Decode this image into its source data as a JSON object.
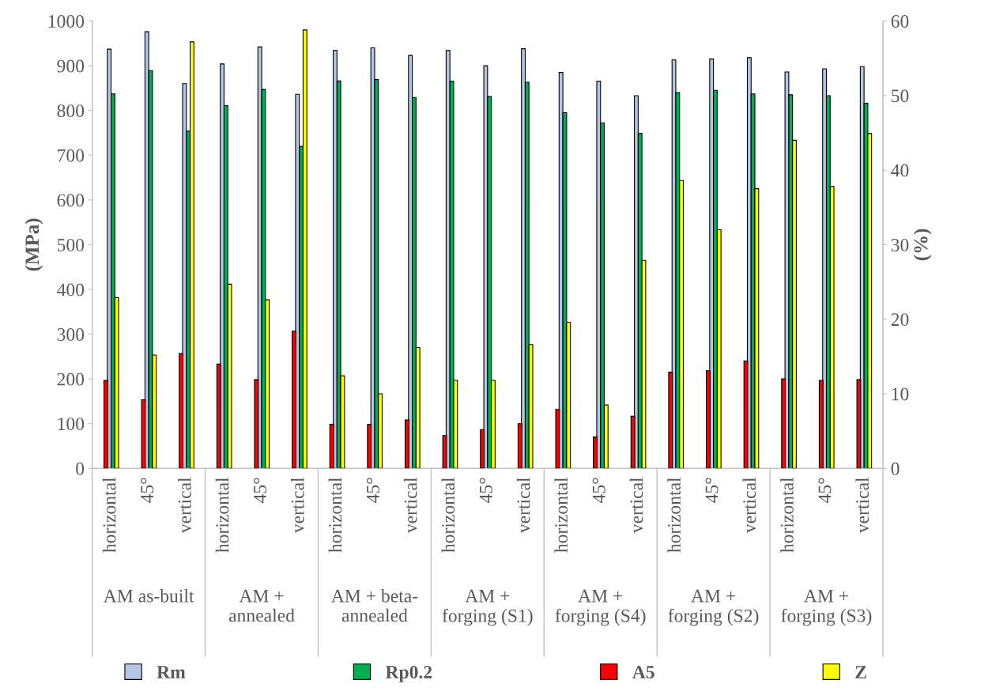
{
  "chart_data": {
    "type": "bar",
    "ylabel": "(MPa)",
    "y2label": "(%)",
    "categories": [
      "horizontal",
      "45°",
      "vertical",
      "horizontal",
      "45°",
      "vertical",
      "horizontal",
      "45°",
      "vertical",
      "horizontal",
      "45°",
      "vertical",
      "horizontal",
      "45°",
      "vertical",
      "horizontal",
      "45°",
      "vertical",
      "horizontal",
      "45°",
      "vertical"
    ],
    "annotations": [
      "AM as-built",
      "AM +\nannealed",
      "AM + beta-\nannealed",
      "AM +\nforging (S1)",
      "AM +\nforging (S4)",
      "AM +\nforging (S2)",
      "AM +\nforging (S3)"
    ],
    "series": [
      {
        "name": "Rm",
        "color": "#b4c7e7",
        "values": [
          937,
          976,
          860,
          904,
          942,
          836,
          934,
          940,
          923,
          934,
          900,
          938,
          885,
          865,
          833,
          913,
          915,
          918,
          886,
          893,
          898
        ]
      },
      {
        "name": "Rp0.2",
        "color": "#00b050",
        "values": [
          837,
          889,
          754,
          811,
          847,
          720,
          866,
          869,
          829,
          865,
          831,
          863,
          795,
          772,
          749,
          840,
          845,
          837,
          835,
          833,
          816
        ]
      },
      {
        "name": "A5",
        "color": "#ff0000",
        "axis": "y2",
        "values": [
          11.8,
          9.2,
          15.4,
          14.0,
          11.9,
          18.4,
          5.9,
          5.9,
          6.5,
          4.4,
          5.2,
          6.0,
          7.9,
          4.2,
          7.0,
          12.9,
          13.1,
          14.4,
          12.0,
          11.8,
          11.9
        ]
      },
      {
        "name": "Z",
        "color": "#ffff00",
        "axis": "y2",
        "values": [
          22.9,
          15.2,
          57.2,
          24.7,
          22.6,
          58.8,
          12.4,
          10.0,
          16.2,
          11.8,
          11.8,
          16.6,
          19.6,
          8.5,
          27.9,
          38.6,
          32.0,
          37.5,
          44.0,
          37.8,
          44.9
        ]
      }
    ],
    "ylim": [
      0,
      1000
    ],
    "yticks": [
      0,
      100,
      200,
      300,
      400,
      500,
      600,
      700,
      800,
      900,
      1000
    ],
    "y2lim": [
      0,
      60
    ],
    "y2ticks": [
      0,
      10,
      20,
      30,
      40,
      50,
      60
    ],
    "legend": "bottom"
  }
}
